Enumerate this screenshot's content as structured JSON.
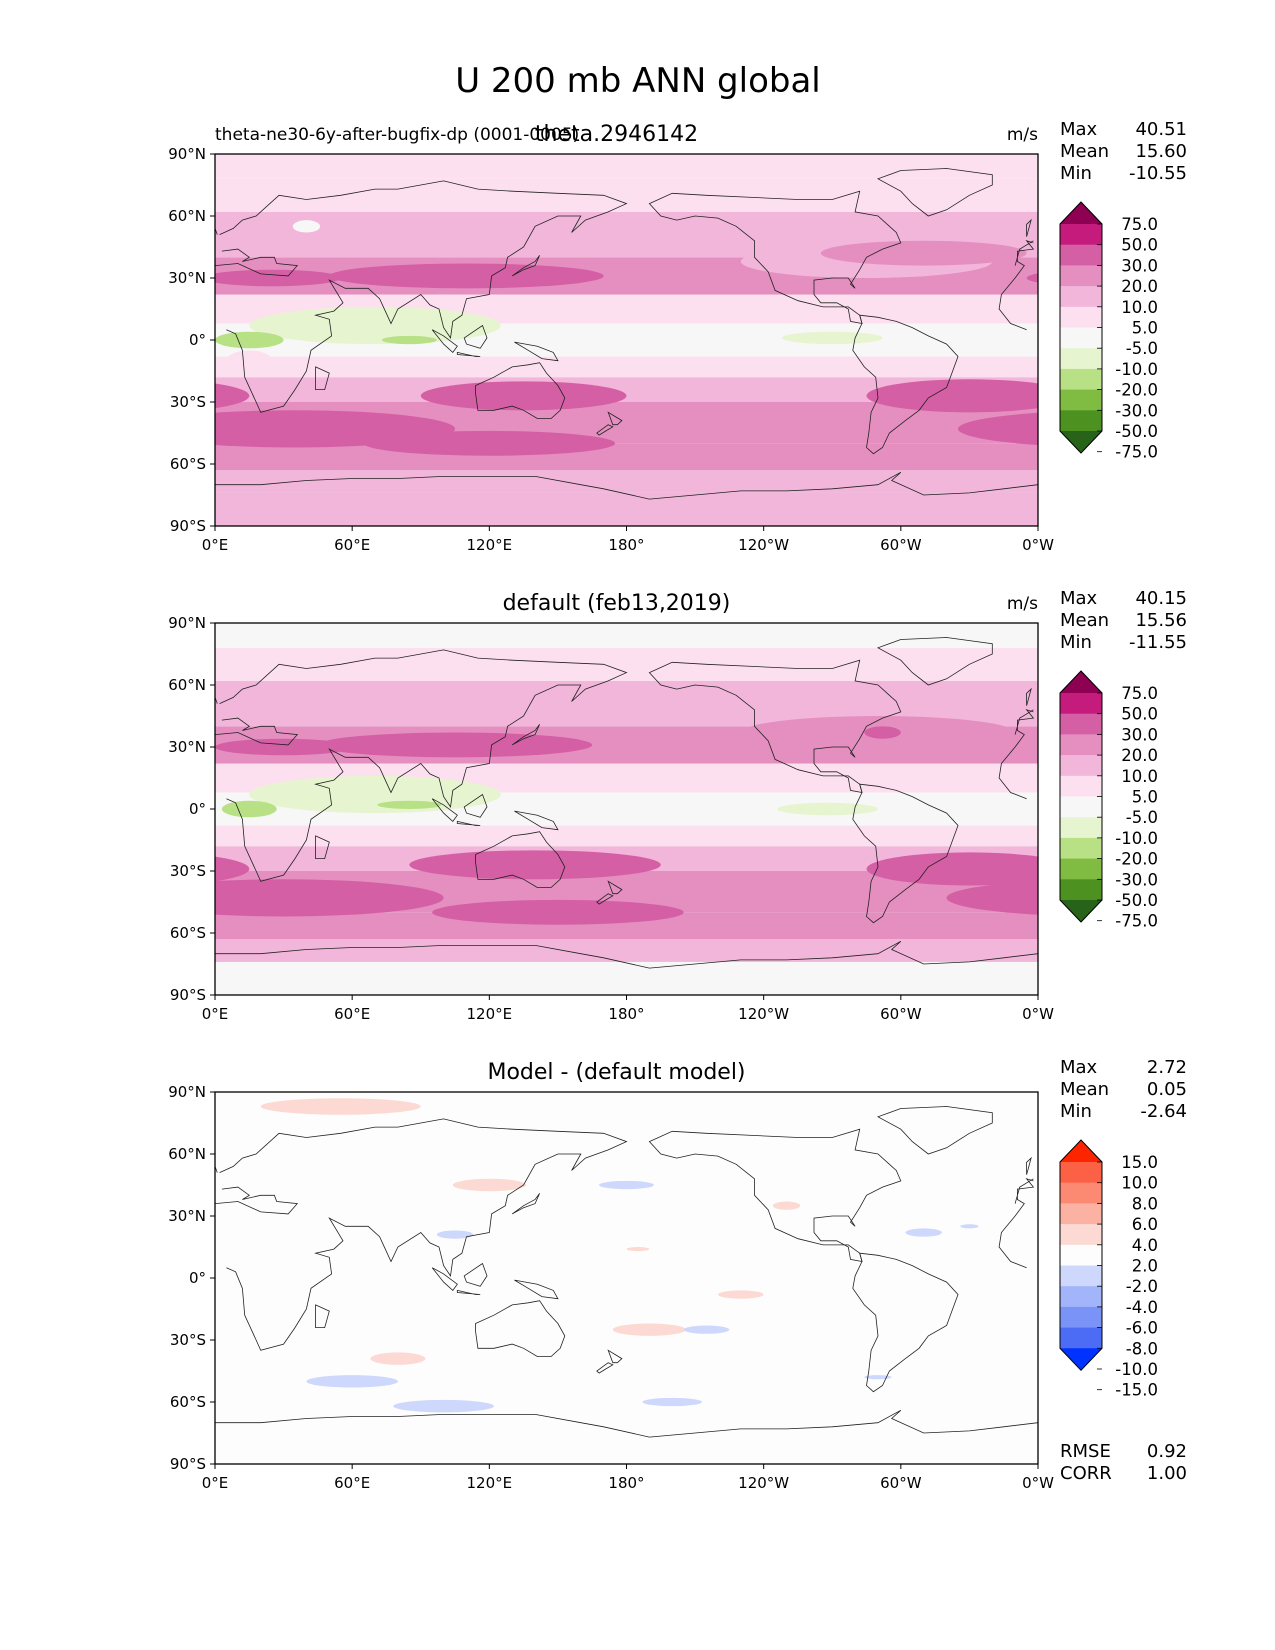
{
  "figure": {
    "suptitle": "U 200 mb ANN global",
    "lat_ticks": [
      "90°N",
      "60°N",
      "30°N",
      "0°",
      "30°S",
      "60°S",
      "90°S"
    ],
    "lon_ticks": [
      "0°E",
      "60°E",
      "120°E",
      "180°",
      "120°W",
      "60°W",
      "0°W"
    ]
  },
  "colors": {
    "field": [
      "#276419",
      "#4d9221",
      "#7fbc41",
      "#b8e186",
      "#e6f5d0",
      "#f7f7f7",
      "#fde0ef",
      "#f1b6da",
      "#e48fc0",
      "#d55fa5",
      "#c51b7d",
      "#8e0152"
    ],
    "diff": [
      "#0033ff",
      "#4d6cf5",
      "#7a93f7",
      "#a2b5fa",
      "#cdd8fc",
      "#fdfdfd",
      "#fcdad3",
      "#fcb2a3",
      "#fc8a72",
      "#fc6146",
      "#fc2500"
    ]
  },
  "chart_data": [
    {
      "type": "map",
      "left_title": "theta-ne30-6y-after-bugfix-dp (0001-0005)",
      "title": "theta.2946142",
      "units": "m/s",
      "stats": [
        {
          "label": "Max",
          "value": "40.51"
        },
        {
          "label": "Mean",
          "value": "15.60"
        },
        {
          "label": "Min",
          "value": "-10.55"
        }
      ],
      "colorbar_levels": [
        "75.0",
        "50.0",
        "30.0",
        "20.0",
        "10.0",
        "5.0",
        "-5.0",
        "-10.0",
        "-20.0",
        "-30.0",
        "-50.0",
        "-75.0"
      ],
      "xlim": [
        0,
        360
      ],
      "ylim": [
        -90,
        90
      ]
    },
    {
      "type": "map",
      "left_title": "",
      "title": "default (feb13,2019)",
      "units": "m/s",
      "stats": [
        {
          "label": "Max",
          "value": "40.15"
        },
        {
          "label": "Mean",
          "value": "15.56"
        },
        {
          "label": "Min",
          "value": "-11.55"
        }
      ],
      "colorbar_levels": [
        "75.0",
        "50.0",
        "30.0",
        "20.0",
        "10.0",
        "5.0",
        "-5.0",
        "-10.0",
        "-20.0",
        "-30.0",
        "-50.0",
        "-75.0"
      ],
      "xlim": [
        0,
        360
      ],
      "ylim": [
        -90,
        90
      ]
    },
    {
      "type": "map",
      "left_title": "",
      "title": "Model - (default model)",
      "units": "",
      "stats": [
        {
          "label": "Max",
          "value": "2.72"
        },
        {
          "label": "Mean",
          "value": "0.05"
        },
        {
          "label": "Min",
          "value": "-2.64"
        }
      ],
      "extra_stats": [
        {
          "label": "RMSE",
          "value": "0.92"
        },
        {
          "label": "CORR",
          "value": "1.00"
        }
      ],
      "colorbar_levels": [
        "15.0",
        "10.0",
        "8.0",
        "6.0",
        "4.0",
        "2.0",
        "-2.0",
        "-4.0",
        "-6.0",
        "-8.0",
        "-10.0",
        "-15.0"
      ],
      "xlim": [
        0,
        360
      ],
      "ylim": [
        -90,
        90
      ]
    }
  ]
}
